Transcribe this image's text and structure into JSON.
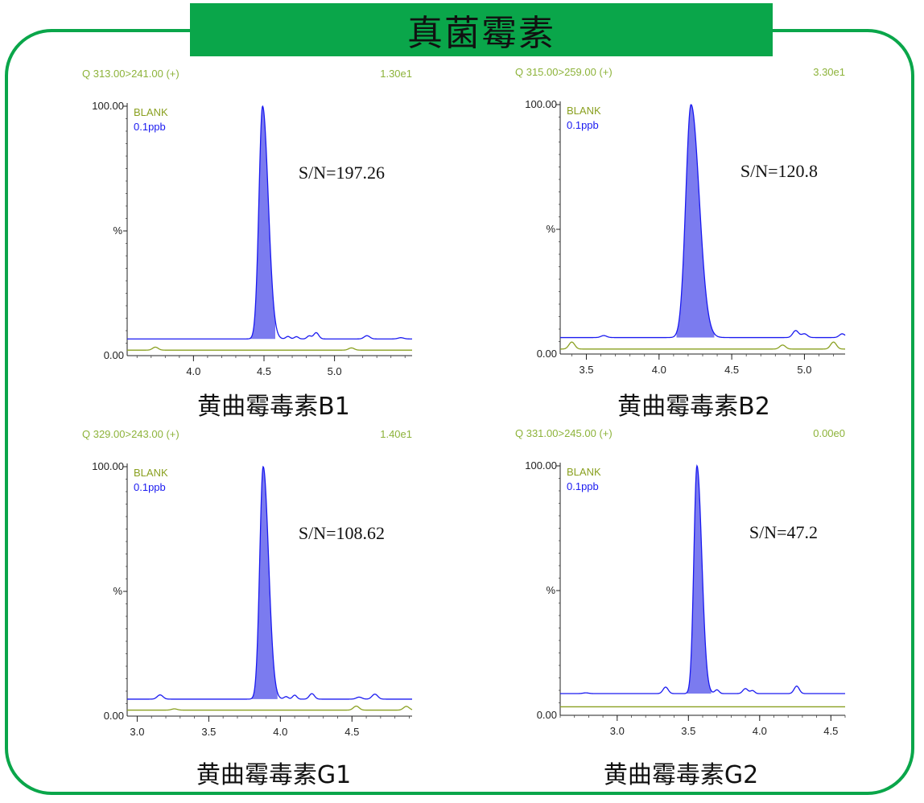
{
  "title": "真菌霉素",
  "colors": {
    "frame": "#0aa64a",
    "header_text": "#8db33a",
    "blank": "#8aa020",
    "sample": "#1a1af0",
    "fill": "#7b7bef"
  },
  "chart_data": [
    {
      "type": "line",
      "transition": "Q 313.00>241.00 (+)",
      "intensity": "1.30e1",
      "caption": "黄曲霉毒素B1",
      "sn": "S/N=197.26",
      "ylabel": "%",
      "ytick_labels": [
        "100.00",
        "0.00"
      ],
      "ylim": [
        0,
        100
      ],
      "xlim": [
        3.53,
        5.55
      ],
      "xticks": [
        4.0,
        4.5,
        5.0
      ],
      "xtick_labels": [
        "4.0",
        "4.5",
        "5.0"
      ],
      "series": [
        {
          "name": "BLANK",
          "baseline": 2.2,
          "bumps": [
            [
              3.73,
              1.2,
              0.02
            ],
            [
              5.12,
              0.9,
              0.02
            ]
          ]
        },
        {
          "name": "0.1ppb",
          "baseline": 6.7,
          "peak": {
            "x": 4.49,
            "height": 93.3,
            "width": 0.032,
            "from": 4.4,
            "to": 4.58
          },
          "bumps": [
            [
              4.67,
              1.0,
              0.015
            ],
            [
              4.73,
              0.9,
              0.015
            ],
            [
              4.82,
              1.2,
              0.015
            ],
            [
              4.87,
              2.5,
              0.018
            ],
            [
              5.23,
              1.3,
              0.02
            ],
            [
              5.47,
              0.5,
              0.02
            ]
          ]
        }
      ]
    },
    {
      "type": "line",
      "transition": "Q 315.00>259.00 (+)",
      "intensity": "3.30e1",
      "caption": "黄曲霉毒素B2",
      "sn": "S/N=120.8",
      "ylabel": "%",
      "ytick_labels": [
        "100.00",
        "0.00"
      ],
      "ylim": [
        0,
        100
      ],
      "xlim": [
        3.32,
        5.28
      ],
      "xticks": [
        3.5,
        4.0,
        4.5,
        5.0
      ],
      "xtick_labels": [
        "3.5",
        "4.0",
        "4.5",
        "5.0"
      ],
      "series": [
        {
          "name": "BLANK",
          "baseline": 2.0,
          "bumps": [
            [
              3.4,
              2.8,
              0.02
            ],
            [
              4.85,
              1.6,
              0.02
            ],
            [
              5.2,
              2.8,
              0.02
            ]
          ]
        },
        {
          "name": "0.1ppb",
          "baseline": 6.6,
          "peak": {
            "x": 4.22,
            "height": 93.4,
            "width": 0.045,
            "from": 4.12,
            "to": 4.38
          },
          "bumps": [
            [
              3.62,
              0.8,
              0.02
            ],
            [
              4.94,
              2.8,
              0.02
            ],
            [
              5.0,
              1.5,
              0.02
            ],
            [
              5.26,
              1.5,
              0.02
            ]
          ]
        }
      ]
    },
    {
      "type": "line",
      "transition": "Q 329.00>243.00 (+)",
      "intensity": "1.40e1",
      "caption": "黄曲霉毒素G1",
      "sn": "S/N=108.62",
      "ylabel": "%",
      "ytick_labels": [
        "100.00",
        "0.00"
      ],
      "ylim": [
        0,
        100
      ],
      "xlim": [
        2.93,
        4.92
      ],
      "xticks": [
        3.0,
        3.5,
        4.0,
        4.5
      ],
      "xtick_labels": [
        "3.0",
        "3.5",
        "4.0",
        "4.5"
      ],
      "series": [
        {
          "name": "BLANK",
          "baseline": 2.4,
          "bumps": [
            [
              3.26,
              0.5,
              0.02
            ],
            [
              4.53,
              1.6,
              0.02
            ],
            [
              4.88,
              1.5,
              0.02
            ]
          ]
        },
        {
          "name": "0.1ppb",
          "baseline": 6.8,
          "peak": {
            "x": 3.88,
            "height": 93.2,
            "width": 0.03,
            "from": 3.8,
            "to": 3.98
          },
          "bumps": [
            [
              3.16,
              1.7,
              0.02
            ],
            [
              4.04,
              1.0,
              0.015
            ],
            [
              4.1,
              1.6,
              0.015
            ],
            [
              4.22,
              2.2,
              0.018
            ],
            [
              4.55,
              0.8,
              0.02
            ],
            [
              4.66,
              2.0,
              0.02
            ]
          ]
        }
      ]
    },
    {
      "type": "line",
      "transition": "Q 331.00>245.00 (+)",
      "intensity": "0.00e0",
      "caption": "黄曲霉毒素G2",
      "sn": "S/N=47.2",
      "ylabel": "%",
      "ytick_labels": [
        "100.00",
        "0.00"
      ],
      "ylim": [
        0,
        100
      ],
      "xlim": [
        2.6,
        4.6
      ],
      "xticks": [
        3.0,
        3.5,
        4.0,
        4.5
      ],
      "xtick_labels": [
        "3.0",
        "3.5",
        "4.0",
        "4.5"
      ],
      "series": [
        {
          "name": "BLANK",
          "baseline": 3.4,
          "bumps": []
        },
        {
          "name": "0.1ppb",
          "baseline": 8.7,
          "peak": {
            "x": 3.56,
            "height": 91.3,
            "width": 0.027,
            "from": 3.49,
            "to": 3.66
          },
          "bumps": [
            [
              2.78,
              0.3,
              0.02
            ],
            [
              3.34,
              2.6,
              0.018
            ],
            [
              3.7,
              1.5,
              0.015
            ],
            [
              3.9,
              2.0,
              0.018
            ],
            [
              3.95,
              1.2,
              0.015
            ],
            [
              4.26,
              3.0,
              0.018
            ]
          ]
        }
      ]
    }
  ]
}
